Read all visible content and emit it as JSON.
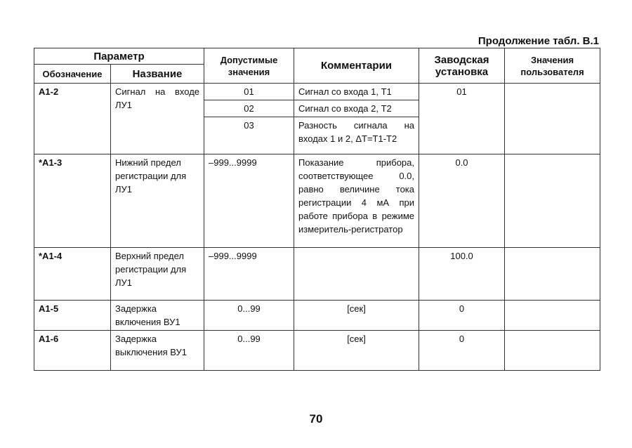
{
  "continuation": "Продолжение табл. В.1",
  "headers": {
    "parameter": "Параметр",
    "designation": "Обозначение",
    "name": "Название",
    "allowed": "Допустимые значения",
    "comments": "Комментарии",
    "factory": "Заводская установка",
    "user": "Значения пользователя"
  },
  "rows": [
    {
      "code": "А1-2",
      "name": "Сигнал на входе ЛУ1",
      "values": [
        "01",
        "02",
        "03"
      ],
      "comments": [
        "Сигнал со входа 1, Т1",
        "Сигнал со входа 2, Т2",
        "Разность сигнала на входах 1 и 2, ΔТ=Т1-Т2"
      ],
      "factory": "01",
      "user": ""
    },
    {
      "code": "*А1-3",
      "name": "Нижний предел регистрации для ЛУ1",
      "values": [
        "–999...9999"
      ],
      "comments": [
        "Показание прибора, соответствующее 0.0, равно величине тока регистрации 4 мА при работе прибора в режиме измеритель-регистратор"
      ],
      "factory": "0.0",
      "user": ""
    },
    {
      "code": "*А1-4",
      "name": "Верхний предел регистрации для ЛУ1",
      "values": [
        "–999...9999"
      ],
      "comments": [
        ""
      ],
      "factory": "100.0",
      "user": ""
    },
    {
      "code": "А1-5",
      "name": "Задержка включения ВУ1",
      "values": [
        "0...99"
      ],
      "comments": [
        "[сек]"
      ],
      "factory": "0",
      "user": ""
    },
    {
      "code": "А1-6",
      "name": "Задержка выключения ВУ1",
      "values": [
        "0...99"
      ],
      "comments": [
        "[сек]"
      ],
      "factory": "0",
      "user": ""
    }
  ],
  "page_number": "70"
}
